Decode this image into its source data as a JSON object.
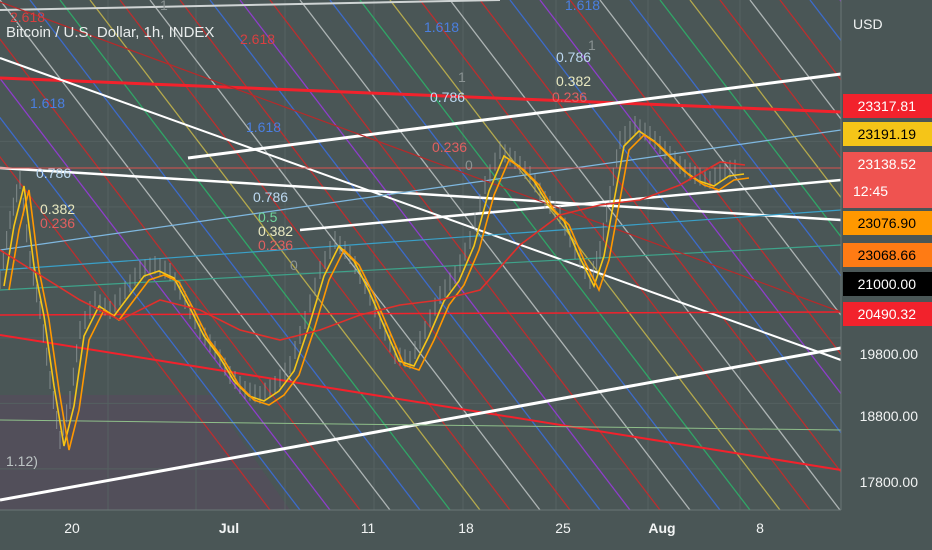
{
  "chart_data": {
    "type": "line",
    "title": "Bitcoin / U.S. Dollar, 1h, INDEX",
    "currency": "USD",
    "x_tick_labels": [
      "20",
      "Jul",
      "11",
      "18",
      "25",
      "Aug",
      "8"
    ],
    "y_tick_labels": [
      "21000.00",
      "19800.00",
      "18800.00",
      "17800.00"
    ],
    "ylim": [
      17300,
      24350
    ],
    "price_tags": [
      {
        "value": "23317.81",
        "color": "#f2222c",
        "text_color": "#ffffff"
      },
      {
        "value": "23191.19",
        "color": "#f5c518",
        "text_color": "#000000"
      },
      {
        "value": "23138.52",
        "sub": "12:45",
        "color": "#ef5350",
        "text_color": "#ffffff"
      },
      {
        "value": "23076.90",
        "color": "#ff9800",
        "text_color": "#000000"
      },
      {
        "value": "23068.66",
        "color": "#ff7b14",
        "text_color": "#000000"
      },
      {
        "value": "21000.00",
        "color": "#000000",
        "text_color": "#ffffff"
      },
      {
        "value": "20490.32",
        "color": "#f2222c",
        "text_color": "#ffffff"
      }
    ],
    "fib_labels": [
      "2.618",
      "2.618",
      "1.618",
      "1.618",
      "1.618",
      "1.618",
      "0.786",
      "0.786",
      "0.786",
      "0.786",
      "0.5",
      "0.382",
      "0.382",
      "0.382",
      "0.236",
      "0.236",
      "0.236",
      "0.236",
      "1",
      "1",
      "1",
      "0",
      "0",
      "1.12)"
    ],
    "series": [
      {
        "name": "",
        "color": "#f5c518",
        "values": []
      },
      {
        "name": "",
        "color": "#ff9800",
        "values": []
      },
      {
        "name": "",
        "color": "#e0302c",
        "values": []
      }
    ]
  },
  "colors": {
    "background": "#4a5656",
    "gridline": "#566363",
    "red_line": "#f2222c",
    "white_line": "#ffffff"
  }
}
